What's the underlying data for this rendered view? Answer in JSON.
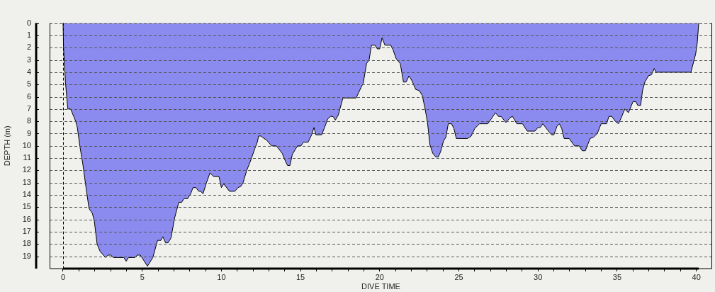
{
  "chart_data": {
    "type": "area",
    "xlabel": "DIVE TIME",
    "ylabel": "DEPTH (m)",
    "color": "#8b8bef",
    "x": [
      0,
      0.03,
      0.15,
      0.3,
      0.48,
      0.8,
      0.9,
      1.07,
      1.25,
      1.45,
      1.64,
      1.85,
      1.97,
      2.15,
      2.34,
      2.69,
      2.84,
      3.01,
      3.19,
      3.84,
      3.99,
      4.13,
      4.54,
      4.69,
      4.88,
      5.33,
      5.67,
      5.97,
      6.18,
      6.3,
      6.48,
      6.63,
      6.82,
      7.04,
      7.31,
      7.49,
      7.64,
      7.87,
      8.06,
      8.21,
      8.39,
      8.57,
      8.69,
      8.84,
      9.06,
      9.28,
      9.51,
      9.85,
      10.0,
      10.15,
      10.51,
      10.85,
      11.05,
      11.23,
      11.37,
      11.6,
      11.82,
      12.12,
      12.27,
      12.35,
      12.5,
      12.69,
      12.84,
      13.17,
      13.47,
      13.84,
      14.06,
      14.18,
      14.33,
      14.48,
      14.81,
      15.03,
      15.18,
      15.48,
      15.7,
      15.85,
      15.97,
      16.33,
      16.52,
      16.72,
      16.9,
      17.05,
      17.2,
      17.38,
      17.68,
      18.51,
      18.84,
      18.96,
      19.17,
      19.33,
      19.48,
      19.7,
      19.85,
      20.0,
      20.15,
      20.33,
      20.7,
      20.85,
      21.04,
      21.3,
      21.5,
      21.67,
      21.85,
      22.04,
      22.27,
      22.5,
      22.69,
      22.87,
      23.02,
      23.17,
      23.35,
      23.54,
      23.7,
      23.84,
      24.03,
      24.18,
      24.33,
      24.54,
      24.69,
      24.84,
      25.55,
      25.78,
      26.0,
      26.3,
      26.83,
      27.05,
      27.31,
      27.5,
      27.67,
      27.97,
      28.24,
      28.39,
      28.66,
      29.02,
      29.32,
      29.81,
      30.0,
      30.15,
      30.3,
      30.6,
      30.86,
      31.0,
      31.2,
      31.35,
      31.5,
      31.65,
      31.97,
      32.3,
      32.6,
      32.79,
      32.99,
      33.29,
      33.5,
      33.74,
      33.99,
      34.33,
      34.48,
      34.66,
      34.88,
      35.08,
      35.26,
      35.48,
      35.71,
      36.0,
      36.18,
      36.3,
      36.48,
      36.6,
      36.75,
      36.97,
      37.17,
      37.34,
      37.46,
      39.66,
      39.96,
      40.06,
      40.15
    ],
    "values": [
      0,
      2.0,
      4.8,
      7.0,
      7.0,
      8.0,
      8.5,
      10.1,
      11.5,
      13.4,
      15.1,
      15.5,
      16.1,
      18.0,
      18.6,
      19.1,
      18.9,
      18.9,
      19.1,
      19.1,
      19.4,
      19.1,
      19.1,
      18.9,
      18.9,
      19.8,
      19.1,
      17.7,
      17.7,
      17.4,
      17.9,
      17.9,
      17.5,
      15.9,
      14.6,
      14.6,
      14.3,
      14.3,
      13.9,
      13.4,
      13.4,
      13.7,
      13.7,
      13.9,
      13.0,
      12.2,
      12.5,
      12.5,
      13.4,
      13.1,
      13.7,
      13.7,
      13.4,
      13.3,
      13.0,
      12.0,
      11.3,
      10.2,
      9.7,
      9.2,
      9.2,
      9.4,
      9.5,
      10.0,
      10.0,
      10.6,
      11.3,
      11.6,
      11.6,
      10.7,
      10.0,
      10.0,
      9.7,
      9.7,
      9.1,
      8.5,
      9.1,
      9.1,
      8.5,
      7.8,
      7.6,
      7.6,
      7.9,
      7.5,
      6.1,
      6.1,
      5.2,
      4.9,
      3.3,
      3.0,
      1.8,
      1.8,
      2.1,
      2.1,
      1.2,
      1.8,
      1.8,
      2.2,
      2.9,
      3.3,
      4.8,
      4.8,
      4.3,
      4.7,
      5.4,
      5.5,
      5.9,
      7.0,
      8.1,
      9.9,
      10.6,
      10.9,
      10.9,
      10.5,
      9.6,
      9.3,
      8.2,
      8.2,
      8.6,
      9.4,
      9.4,
      9.2,
      8.6,
      8.2,
      8.2,
      7.8,
      7.3,
      7.6,
      7.6,
      8.1,
      7.7,
      7.6,
      8.2,
      8.2,
      8.8,
      8.8,
      8.5,
      8.5,
      8.2,
      8.7,
      9.1,
      9.1,
      8.4,
      8.2,
      8.6,
      9.4,
      9.4,
      10.0,
      10.0,
      10.4,
      10.4,
      9.4,
      9.3,
      9.0,
      8.2,
      8.2,
      7.6,
      7.6,
      8.0,
      8.2,
      7.7,
      7.0,
      7.3,
      6.4,
      6.4,
      6.7,
      6.7,
      5.5,
      4.8,
      4.3,
      4.2,
      3.7,
      4.0,
      4.0,
      2.5,
      1.6,
      0
    ],
    "xlim": [
      -0.85,
      41
    ],
    "ylim": [
      20,
      0
    ],
    "xticks": [
      0,
      {
        "value": 1,
        "label": null
      },
      {
        "value": 2,
        "label": null
      },
      {
        "value": 3,
        "label": null
      },
      {
        "value": 4,
        "label": null
      },
      5,
      {
        "value": 6,
        "label": null
      },
      {
        "value": 7,
        "label": null
      },
      {
        "value": 8,
        "label": null
      },
      {
        "value": 9,
        "label": null
      },
      10,
      {
        "value": 11,
        "label": null
      },
      {
        "value": 12,
        "label": null
      },
      {
        "value": 13,
        "label": null
      },
      {
        "value": 14,
        "label": null
      },
      15,
      {
        "value": 16,
        "label": null
      },
      {
        "value": 17,
        "label": null
      },
      {
        "value": 18,
        "label": null
      },
      {
        "value": 19,
        "label": null
      },
      20,
      {
        "value": 21,
        "label": null
      },
      {
        "value": 22,
        "label": null
      },
      {
        "value": 23,
        "label": null
      },
      {
        "value": 24,
        "label": null
      },
      25,
      {
        "value": 26,
        "label": null
      },
      {
        "value": 27,
        "label": null
      },
      {
        "value": 28,
        "label": null
      },
      {
        "value": 29,
        "label": null
      },
      30,
      {
        "value": 31,
        "label": null
      },
      {
        "value": 32,
        "label": null
      },
      {
        "value": 33,
        "label": null
      },
      {
        "value": 34,
        "label": null
      },
      35,
      {
        "value": 36,
        "label": null
      },
      {
        "value": 37,
        "label": null
      },
      {
        "value": 38,
        "label": null
      },
      {
        "value": 39,
        "label": null
      },
      40
    ],
    "yticks": [
      0,
      1,
      2,
      3,
      4,
      5,
      6,
      7,
      8,
      9,
      10,
      11,
      12,
      13,
      14,
      15,
      16,
      17,
      18,
      19
    ],
    "grid": "y",
    "ref_lines": [
      {
        "axis": "x",
        "value": 0,
        "color": "#000000",
        "line_style": "dashed"
      }
    ]
  }
}
